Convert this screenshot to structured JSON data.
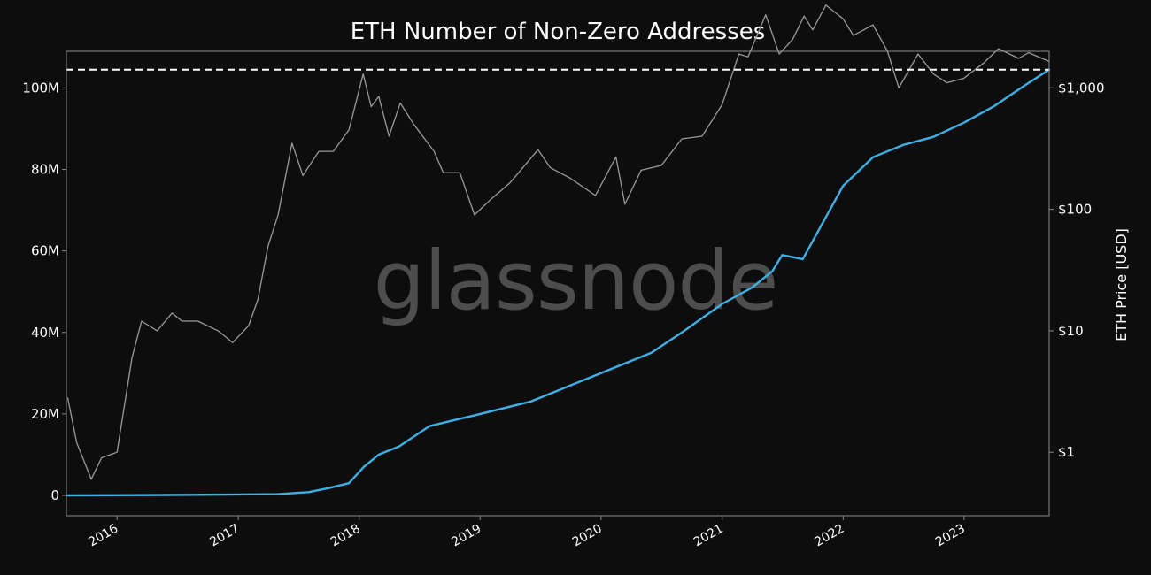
{
  "chart_data": {
    "type": "line",
    "title": "ETH Number of Non-Zero Addresses",
    "y2label": "ETH Price [USD]",
    "watermark": "glassnode",
    "x_ticks": [
      "2016",
      "2017",
      "2018",
      "2019",
      "2020",
      "2021",
      "2022",
      "2023"
    ],
    "y_ticks": [
      "0",
      "20M",
      "40M",
      "60M",
      "80M",
      "100M"
    ],
    "y2_ticks": [
      "$1",
      "$10",
      "$100",
      "$1,000"
    ],
    "ylim": [
      -5000000,
      109000000
    ],
    "y2lim_log": [
      0.3,
      2000
    ],
    "xlim": [
      "2015-08-01",
      "2023-09-15"
    ],
    "grid": false,
    "reference_line": {
      "value": 104500000,
      "style": "dashed",
      "color": "#ffffff"
    },
    "series": [
      {
        "color": "#3db0e6",
        "axis": "left",
        "x": [
          "2015-08-01",
          "2016-06-01",
          "2017-05-01",
          "2017-08-01",
          "2017-10-01",
          "2017-12-01",
          "2018-01-15",
          "2018-03-01",
          "2018-05-01",
          "2018-08-01",
          "2019-01-01",
          "2019-06-01",
          "2019-09-01",
          "2020-01-01",
          "2020-03-01",
          "2020-06-01",
          "2020-09-01",
          "2021-01-01",
          "2021-04-01",
          "2021-06-01",
          "2021-07-01",
          "2021-09-01",
          "2021-11-01",
          "2022-01-01",
          "2022-04-01",
          "2022-07-01",
          "2022-10-01",
          "2023-01-01",
          "2023-04-01",
          "2023-07-01",
          "2023-09-15"
        ],
        "values": [
          0,
          100000,
          300000,
          800000,
          1800000,
          3000000,
          7000000,
          10000000,
          12000000,
          17000000,
          20000000,
          23000000,
          26000000,
          30000000,
          32000000,
          35000000,
          40000000,
          47000000,
          51000000,
          55000000,
          59000000,
          58000000,
          67000000,
          76000000,
          83000000,
          86000000,
          88000000,
          91500000,
          95500000,
          100500000,
          104500000
        ]
      },
      {
        "color": "#9a9a9a",
        "axis": "right_log",
        "x": [
          "2015-08-05",
          "2015-09-01",
          "2015-10-15",
          "2015-11-15",
          "2016-01-01",
          "2016-02-15",
          "2016-03-15",
          "2016-05-01",
          "2016-06-15",
          "2016-07-15",
          "2016-09-01",
          "2016-11-01",
          "2016-12-15",
          "2017-02-01",
          "2017-03-01",
          "2017-04-01",
          "2017-05-01",
          "2017-06-12",
          "2017-07-15",
          "2017-09-01",
          "2017-10-15",
          "2017-12-01",
          "2018-01-13",
          "2018-02-06",
          "2018-03-01",
          "2018-04-01",
          "2018-05-05",
          "2018-06-15",
          "2018-08-15",
          "2018-09-12",
          "2018-11-01",
          "2018-12-15",
          "2019-02-01",
          "2019-04-01",
          "2019-06-25",
          "2019-08-01",
          "2019-10-01",
          "2019-12-15",
          "2020-02-15",
          "2020-03-13",
          "2020-05-01",
          "2020-07-01",
          "2020-09-01",
          "2020-11-01",
          "2021-01-01",
          "2021-02-20",
          "2021-03-20",
          "2021-05-12",
          "2021-06-22",
          "2021-08-01",
          "2021-09-05",
          "2021-10-01",
          "2021-11-10",
          "2022-01-01",
          "2022-02-01",
          "2022-04-01",
          "2022-05-15",
          "2022-06-18",
          "2022-08-15",
          "2022-10-01",
          "2022-11-10",
          "2022-12-31",
          "2023-03-01",
          "2023-04-15",
          "2023-06-15",
          "2023-07-15",
          "2023-09-15"
        ],
        "values": [
          2.8,
          1.2,
          0.6,
          0.9,
          1.0,
          6.0,
          12.0,
          10.0,
          14.0,
          12.0,
          12.0,
          10.0,
          8.0,
          11.0,
          18.0,
          50.0,
          90.0,
          350.0,
          190.0,
          300.0,
          300.0,
          450.0,
          1300.0,
          700.0,
          850.0,
          400.0,
          750.0,
          500.0,
          300.0,
          200.0,
          200.0,
          90.0,
          120.0,
          165.0,
          310.0,
          220.0,
          180.0,
          130.0,
          270.0,
          110.0,
          210.0,
          230.0,
          380.0,
          400.0,
          730.0,
          1900.0,
          1800.0,
          4000.0,
          1900.0,
          2500.0,
          3900.0,
          3000.0,
          4800.0,
          3700.0,
          2700.0,
          3300.0,
          2000.0,
          1000.0,
          1900.0,
          1300.0,
          1100.0,
          1200.0,
          1600.0,
          2100.0,
          1750.0,
          1950.0,
          1650.0
        ]
      }
    ]
  }
}
